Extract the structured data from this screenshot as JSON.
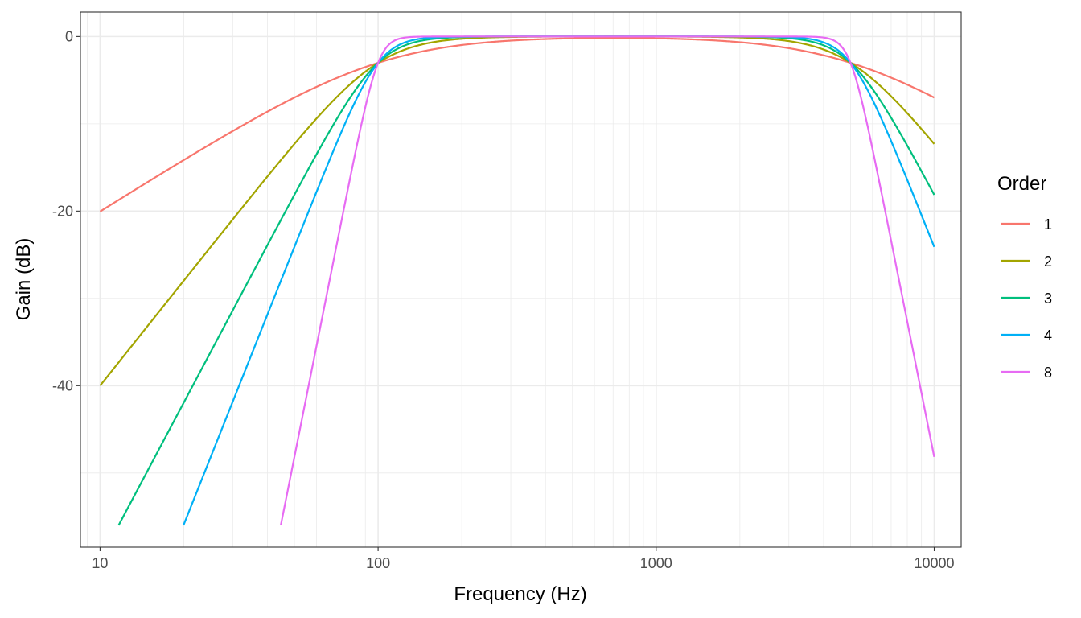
{
  "chart_data": {
    "type": "line",
    "title": "",
    "xlabel": "Frequency (Hz)",
    "ylabel": "Gain (dB)",
    "x_scale": "log10",
    "xlim": [
      8.5,
      12500
    ],
    "ylim": [
      -58.5,
      2.8
    ],
    "x_ticks": [
      10,
      100,
      1000,
      10000
    ],
    "x_tick_labels": [
      "10",
      "100",
      "1000",
      "10000"
    ],
    "y_ticks": [
      0,
      -20,
      -40
    ],
    "y_tick_labels": [
      "0",
      "-20",
      "-40"
    ],
    "grid": true,
    "legend": {
      "title": "Order",
      "position": "right"
    },
    "filter": {
      "low_cutoff_hz": 100,
      "high_cutoff_hz": 5000
    },
    "x_range": [
      10,
      10000
    ],
    "y_min_clip": -56,
    "series": [
      {
        "name": "1",
        "order": 1,
        "color": "#F8766D"
      },
      {
        "name": "2",
        "order": 2,
        "color": "#A3A500"
      },
      {
        "name": "3",
        "order": 3,
        "color": "#00BF7D"
      },
      {
        "name": "4",
        "order": 4,
        "color": "#00B0F6"
      },
      {
        "name": "8",
        "order": 8,
        "color": "#E76BF3"
      }
    ]
  }
}
